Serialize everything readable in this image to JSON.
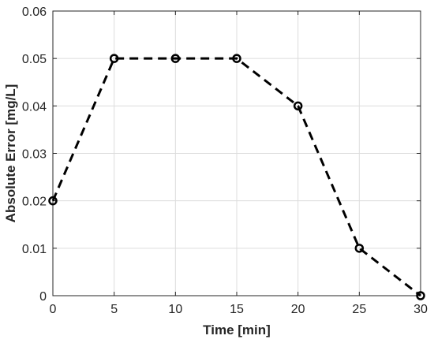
{
  "chart_data": {
    "type": "line",
    "title": "",
    "xlabel": "Time [min]",
    "ylabel": "Absolute Error [mg/L]",
    "xlim": [
      0,
      30
    ],
    "ylim": [
      0,
      0.06
    ],
    "x_ticks": [
      "0",
      "5",
      "10",
      "15",
      "20",
      "25",
      "30"
    ],
    "y_ticks": [
      "0",
      "0.01",
      "0.02",
      "0.03",
      "0.04",
      "0.05",
      "0.06"
    ],
    "grid": true,
    "series": [
      {
        "x": [
          0,
          5,
          10,
          15,
          20,
          25,
          30
        ],
        "y": [
          0.02,
          0.05,
          0.05,
          0.05,
          0.04,
          0.01,
          0
        ],
        "line_style": "dashed",
        "marker": "open-circle",
        "color": "#000000"
      }
    ]
  },
  "colors": {
    "grid": "#dcdcdc",
    "axis": "#262626",
    "series": "#000000",
    "background": "#ffffff"
  }
}
